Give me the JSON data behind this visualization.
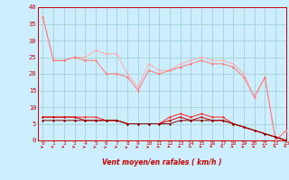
{
  "xlabel": "Vent moyen/en rafales ( km/h )",
  "xlim": [
    -0.5,
    23
  ],
  "ylim": [
    0,
    40
  ],
  "yticks": [
    0,
    5,
    10,
    15,
    20,
    25,
    30,
    35,
    40
  ],
  "xticks": [
    0,
    1,
    2,
    3,
    4,
    5,
    6,
    7,
    8,
    9,
    10,
    11,
    12,
    13,
    14,
    15,
    16,
    17,
    18,
    19,
    20,
    21,
    22,
    23
  ],
  "bg_color": "#cceeff",
  "grid_color": "#99cccc",
  "line1_x": [
    0,
    1,
    2,
    3,
    4,
    5,
    6,
    7,
    8,
    9,
    10,
    11,
    12,
    13,
    14,
    15,
    16,
    17,
    18,
    19,
    20,
    21,
    22,
    23
  ],
  "line1_y": [
    37,
    24,
    24,
    25,
    25,
    27,
    26,
    26,
    20,
    16,
    23,
    21,
    21,
    23,
    24,
    25,
    24,
    24,
    23,
    20,
    13,
    19,
    0,
    3
  ],
  "line1_color": "#ffaaaa",
  "line2_x": [
    0,
    1,
    2,
    3,
    4,
    5,
    6,
    7,
    8,
    9,
    10,
    11,
    12,
    13,
    14,
    15,
    16,
    17,
    18,
    19,
    20,
    21,
    22,
    23
  ],
  "line2_y": [
    37,
    24,
    24,
    25,
    24,
    24,
    20,
    20,
    19,
    15,
    21,
    20,
    21,
    22,
    23,
    24,
    23,
    23,
    22,
    19,
    13,
    19,
    0,
    3
  ],
  "line2_color": "#ff7777",
  "line3_x": [
    0,
    1,
    2,
    3,
    4,
    5,
    6,
    7,
    8,
    9,
    10,
    11,
    12,
    13,
    14,
    15,
    16,
    17,
    18,
    19,
    20,
    21,
    22,
    23
  ],
  "line3_y": [
    7,
    7,
    7,
    7,
    7,
    7,
    6,
    6,
    5,
    5,
    5,
    5,
    7,
    8,
    7,
    8,
    7,
    7,
    5,
    4,
    3,
    2,
    1,
    0
  ],
  "line3_color": "#ff2222",
  "line4_x": [
    0,
    1,
    2,
    3,
    4,
    5,
    6,
    7,
    8,
    9,
    10,
    11,
    12,
    13,
    14,
    15,
    16,
    17,
    18,
    19,
    20,
    21,
    22,
    23
  ],
  "line4_y": [
    7,
    7,
    7,
    7,
    6,
    6,
    6,
    6,
    5,
    5,
    5,
    5,
    6,
    7,
    6,
    7,
    6,
    6,
    5,
    4,
    3,
    2,
    1,
    0
  ],
  "line4_color": "#cc0000",
  "line5_x": [
    0,
    1,
    2,
    3,
    4,
    5,
    6,
    7,
    8,
    9,
    10,
    11,
    12,
    13,
    14,
    15,
    16,
    17,
    18,
    19,
    20,
    21,
    22,
    23
  ],
  "line5_y": [
    6,
    6,
    6,
    6,
    6,
    6,
    6,
    6,
    5,
    5,
    5,
    5,
    5,
    6,
    6,
    6,
    6,
    6,
    5,
    4,
    3,
    2,
    1,
    0
  ],
  "line5_color": "#880000",
  "arrow_color": "#cc0000",
  "label_color": "#cc0000",
  "spine_color": "#cc0000"
}
